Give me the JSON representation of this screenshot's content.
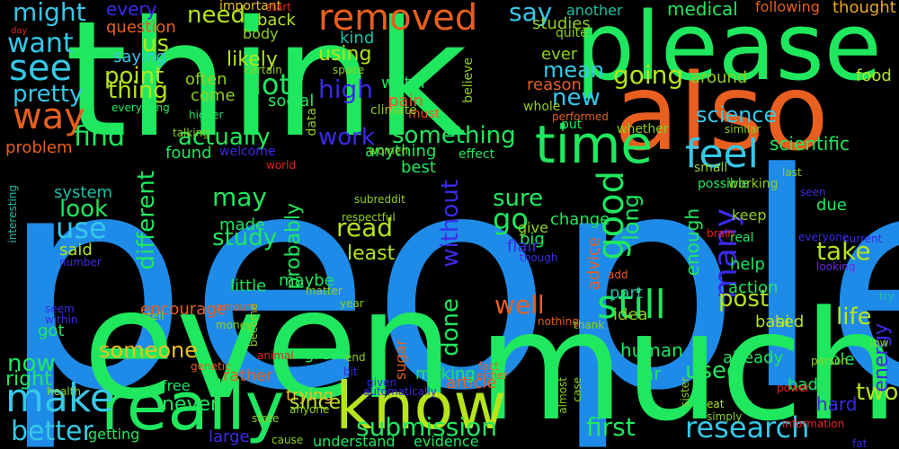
{
  "background": "#000000",
  "palette": {
    "blue": "#1f8be8",
    "green": "#1fe85f",
    "lime": "#b5e51a",
    "orange": "#e85f1f",
    "cyan": "#35c8e8",
    "gold": "#e8c21f",
    "violet": "#3b2be8",
    "olive": "#8fcf1f",
    "teal": "#1fbfa8",
    "purple": "#6a2be0",
    "red": "#e8231f",
    "amber": "#e8a91f"
  },
  "words": [
    {
      "text": "people",
      "color": "blue"
    },
    {
      "text": "think",
      "color": "green"
    },
    {
      "text": "even",
      "color": "green"
    },
    {
      "text": "much",
      "color": "green"
    },
    {
      "text": "also",
      "color": "orange"
    },
    {
      "text": "please",
      "color": "green"
    },
    {
      "text": "know",
      "color": "lime"
    },
    {
      "text": "really",
      "color": "green"
    },
    {
      "text": "removed",
      "color": "orange"
    },
    {
      "text": "time",
      "color": "green"
    },
    {
      "text": "make",
      "color": "cyan"
    },
    {
      "text": "see",
      "color": "cyan"
    },
    {
      "text": "way",
      "color": "orange"
    },
    {
      "text": "still",
      "color": "green"
    },
    {
      "text": "feel",
      "color": "cyan"
    },
    {
      "text": "good",
      "color": "green"
    },
    {
      "text": "research",
      "color": "cyan"
    },
    {
      "text": "submission",
      "color": "green"
    },
    {
      "text": "first",
      "color": "green"
    },
    {
      "text": "many",
      "color": "violet"
    },
    {
      "text": "well",
      "color": "orange"
    },
    {
      "text": "want",
      "color": "cyan"
    },
    {
      "text": "might",
      "color": "cyan"
    },
    {
      "text": "say",
      "color": "cyan"
    },
    {
      "text": "going",
      "color": "lime"
    },
    {
      "text": "lot",
      "color": "green"
    },
    {
      "text": "need",
      "color": "lime"
    },
    {
      "text": "actually",
      "color": "green"
    },
    {
      "text": "something",
      "color": "green"
    },
    {
      "text": "work",
      "color": "violet"
    },
    {
      "text": "new",
      "color": "cyan"
    },
    {
      "text": "find",
      "color": "green"
    },
    {
      "text": "study",
      "color": "green"
    },
    {
      "text": "read",
      "color": "lime"
    },
    {
      "text": "may",
      "color": "green"
    },
    {
      "text": "take",
      "color": "lime"
    },
    {
      "text": "post",
      "color": "lime"
    },
    {
      "text": "life",
      "color": "lime"
    },
    {
      "text": "long",
      "color": "green"
    },
    {
      "text": "different",
      "color": "green"
    },
    {
      "text": "better",
      "color": "cyan"
    },
    {
      "text": "now",
      "color": "green"
    },
    {
      "text": "use",
      "color": "cyan"
    },
    {
      "text": "look",
      "color": "green"
    },
    {
      "text": "used",
      "color": "green"
    },
    {
      "text": "done",
      "color": "green"
    },
    {
      "text": "without",
      "color": "violet"
    },
    {
      "text": "go",
      "color": "green"
    },
    {
      "text": "sure",
      "color": "green"
    },
    {
      "text": "point",
      "color": "lime"
    },
    {
      "text": "thing",
      "color": "lime"
    },
    {
      "text": "high",
      "color": "violet"
    },
    {
      "text": "pretty",
      "color": "cyan"
    },
    {
      "text": "us",
      "color": "lime"
    },
    {
      "text": "every",
      "color": "violet"
    },
    {
      "text": "using",
      "color": "lime"
    },
    {
      "text": "mean",
      "color": "cyan"
    },
    {
      "text": "science",
      "color": "cyan"
    },
    {
      "text": "scientific",
      "color": "green"
    },
    {
      "text": "probably",
      "color": "green"
    },
    {
      "text": "someone",
      "color": "gold"
    },
    {
      "text": "never",
      "color": "green"
    },
    {
      "text": "two",
      "color": "lime"
    },
    {
      "text": "energy",
      "color": "violet"
    },
    {
      "text": "enough",
      "color": "green"
    },
    {
      "text": "right",
      "color": "green"
    },
    {
      "text": "since",
      "color": "lime"
    },
    {
      "text": "least",
      "color": "lime"
    },
    {
      "text": "likely",
      "color": "lime"
    },
    {
      "text": "another",
      "color": "teal"
    },
    {
      "text": "medical",
      "color": "green"
    },
    {
      "text": "following",
      "color": "orange"
    },
    {
      "text": "thought",
      "color": "amber"
    },
    {
      "text": "food",
      "color": "lime"
    },
    {
      "text": "around",
      "color": "olive"
    },
    {
      "text": "problem",
      "color": "orange"
    },
    {
      "text": "social",
      "color": "green"
    },
    {
      "text": "water",
      "color": "green"
    },
    {
      "text": "pain",
      "color": "orange"
    },
    {
      "text": "often",
      "color": "olive"
    },
    {
      "text": "come",
      "color": "olive"
    },
    {
      "text": "kind",
      "color": "teal"
    },
    {
      "text": "studies",
      "color": "olive"
    },
    {
      "text": "ever",
      "color": "olive"
    },
    {
      "text": "reason",
      "color": "orange"
    },
    {
      "text": "back",
      "color": "lime"
    },
    {
      "text": "question",
      "color": "orange"
    },
    {
      "text": "saying",
      "color": "cyan"
    },
    {
      "text": "body",
      "color": "olive"
    },
    {
      "text": "important",
      "color": "gold"
    },
    {
      "text": "change",
      "color": "green"
    },
    {
      "text": "found",
      "color": "green"
    },
    {
      "text": "system",
      "color": "teal"
    },
    {
      "text": "made",
      "color": "green"
    },
    {
      "text": "help",
      "color": "green"
    },
    {
      "text": "action",
      "color": "green"
    },
    {
      "text": "part",
      "color": "teal"
    },
    {
      "text": "based",
      "color": "lime"
    },
    {
      "text": "hi",
      "color": "lime"
    },
    {
      "text": "idea",
      "color": "olive"
    },
    {
      "text": "human",
      "color": "green"
    },
    {
      "text": "far",
      "color": "green"
    },
    {
      "text": "already",
      "color": "green"
    },
    {
      "text": "able",
      "color": "green"
    },
    {
      "text": "hard",
      "color": "violet"
    },
    {
      "text": "bad",
      "color": "green"
    },
    {
      "text": "article",
      "color": "orange"
    },
    {
      "text": "trying",
      "color": "gold"
    },
    {
      "text": "rather",
      "color": "orange"
    },
    {
      "text": "free",
      "color": "green"
    },
    {
      "text": "getting",
      "color": "green"
    },
    {
      "text": "large",
      "color": "violet"
    },
    {
      "text": "understand",
      "color": "green"
    },
    {
      "text": "evidence",
      "color": "green"
    },
    {
      "text": "great",
      "color": "green"
    },
    {
      "text": "making",
      "color": "green"
    },
    {
      "text": "maybe",
      "color": "green"
    },
    {
      "text": "little",
      "color": "green"
    },
    {
      "text": "said",
      "color": "lime"
    },
    {
      "text": "encourage",
      "color": "orange"
    },
    {
      "text": "got",
      "color": "green"
    },
    {
      "text": "sugar",
      "color": "orange"
    },
    {
      "text": "big",
      "color": "green"
    },
    {
      "text": "give",
      "color": "olive"
    },
    {
      "text": "flair",
      "color": "violet"
    },
    {
      "text": "advice",
      "color": "orange"
    },
    {
      "text": "due",
      "color": "green"
    },
    {
      "text": "keep",
      "color": "olive"
    },
    {
      "text": "real",
      "color": "green"
    },
    {
      "text": "best",
      "color": "green"
    },
    {
      "text": "anything",
      "color": "green"
    },
    {
      "text": "effect",
      "color": "green"
    },
    {
      "text": "whole",
      "color": "olive"
    },
    {
      "text": "put",
      "color": "green"
    },
    {
      "text": "small",
      "color": "olive"
    },
    {
      "text": "possible",
      "color": "green"
    },
    {
      "text": "working",
      "color": "olive"
    },
    {
      "text": "whether",
      "color": "olive"
    },
    {
      "text": "last",
      "color": "olive"
    },
    {
      "text": "performed",
      "color": "orange"
    },
    {
      "text": "similar",
      "color": "olive"
    },
    {
      "text": "higher",
      "color": "green"
    },
    {
      "text": "everything",
      "color": "green"
    },
    {
      "text": "quite",
      "color": "olive"
    },
    {
      "text": "believe",
      "color": "olive"
    },
    {
      "text": "must",
      "color": "orange"
    },
    {
      "text": "climate",
      "color": "olive"
    },
    {
      "text": "space",
      "color": "olive"
    },
    {
      "text": "certain",
      "color": "olive"
    },
    {
      "text": "start",
      "color": "red"
    },
    {
      "text": "day",
      "color": "red"
    },
    {
      "text": "welcome",
      "color": "violet"
    },
    {
      "text": "world",
      "color": "red"
    },
    {
      "text": "talking",
      "color": "olive"
    },
    {
      "text": "data",
      "color": "olive"
    },
    {
      "text": "women",
      "color": "olive"
    },
    {
      "text": "respectful",
      "color": "olive"
    },
    {
      "text": "subreddit",
      "color": "olive"
    },
    {
      "text": "interesting",
      "color": "teal"
    },
    {
      "text": "number",
      "color": "violet"
    },
    {
      "text": "though",
      "color": "violet"
    },
    {
      "text": "brain",
      "color": "red"
    },
    {
      "text": "seen",
      "color": "violet"
    },
    {
      "text": "everyone",
      "color": "violet"
    },
    {
      "text": "current",
      "color": "violet"
    },
    {
      "text": "looking",
      "color": "purple"
    },
    {
      "text": "add",
      "color": "orange"
    },
    {
      "text": "matter",
      "color": "olive"
    },
    {
      "text": "seem",
      "color": "violet"
    },
    {
      "text": "within",
      "color": "violet"
    },
    {
      "text": "tell",
      "color": "olive"
    },
    {
      "text": "amount",
      "color": "orange"
    },
    {
      "text": "money",
      "color": "olive"
    },
    {
      "text": "year",
      "color": "olive"
    },
    {
      "text": "become",
      "color": "olive"
    },
    {
      "text": "nothing",
      "color": "orange"
    },
    {
      "text": "thank",
      "color": "olive"
    },
    {
      "text": "animal",
      "color": "red"
    },
    {
      "text": "genetic",
      "color": "orange"
    },
    {
      "text": "end",
      "color": "olive"
    },
    {
      "text": "bit",
      "color": "violet"
    },
    {
      "text": "fact",
      "color": "orange"
    },
    {
      "text": "either",
      "color": "orange"
    },
    {
      "text": "given",
      "color": "violet"
    },
    {
      "text": "automatically",
      "color": "violet"
    },
    {
      "text": "almost",
      "color": "olive"
    },
    {
      "text": "case",
      "color": "olive"
    },
    {
      "text": "sister",
      "color": "olive"
    },
    {
      "text": "eat",
      "color": "lime"
    },
    {
      "text": "simply",
      "color": "olive"
    },
    {
      "text": "power",
      "color": "red"
    },
    {
      "text": "person",
      "color": "olive"
    },
    {
      "text": "information",
      "color": "red"
    },
    {
      "text": "fat",
      "color": "violet"
    },
    {
      "text": "try",
      "color": "teal"
    },
    {
      "text": "low",
      "color": "olive"
    },
    {
      "text": "health",
      "color": "olive"
    },
    {
      "text": "state",
      "color": "olive"
    },
    {
      "text": "anyone",
      "color": "olive"
    },
    {
      "text": "cause",
      "color": "olive"
    }
  ]
}
